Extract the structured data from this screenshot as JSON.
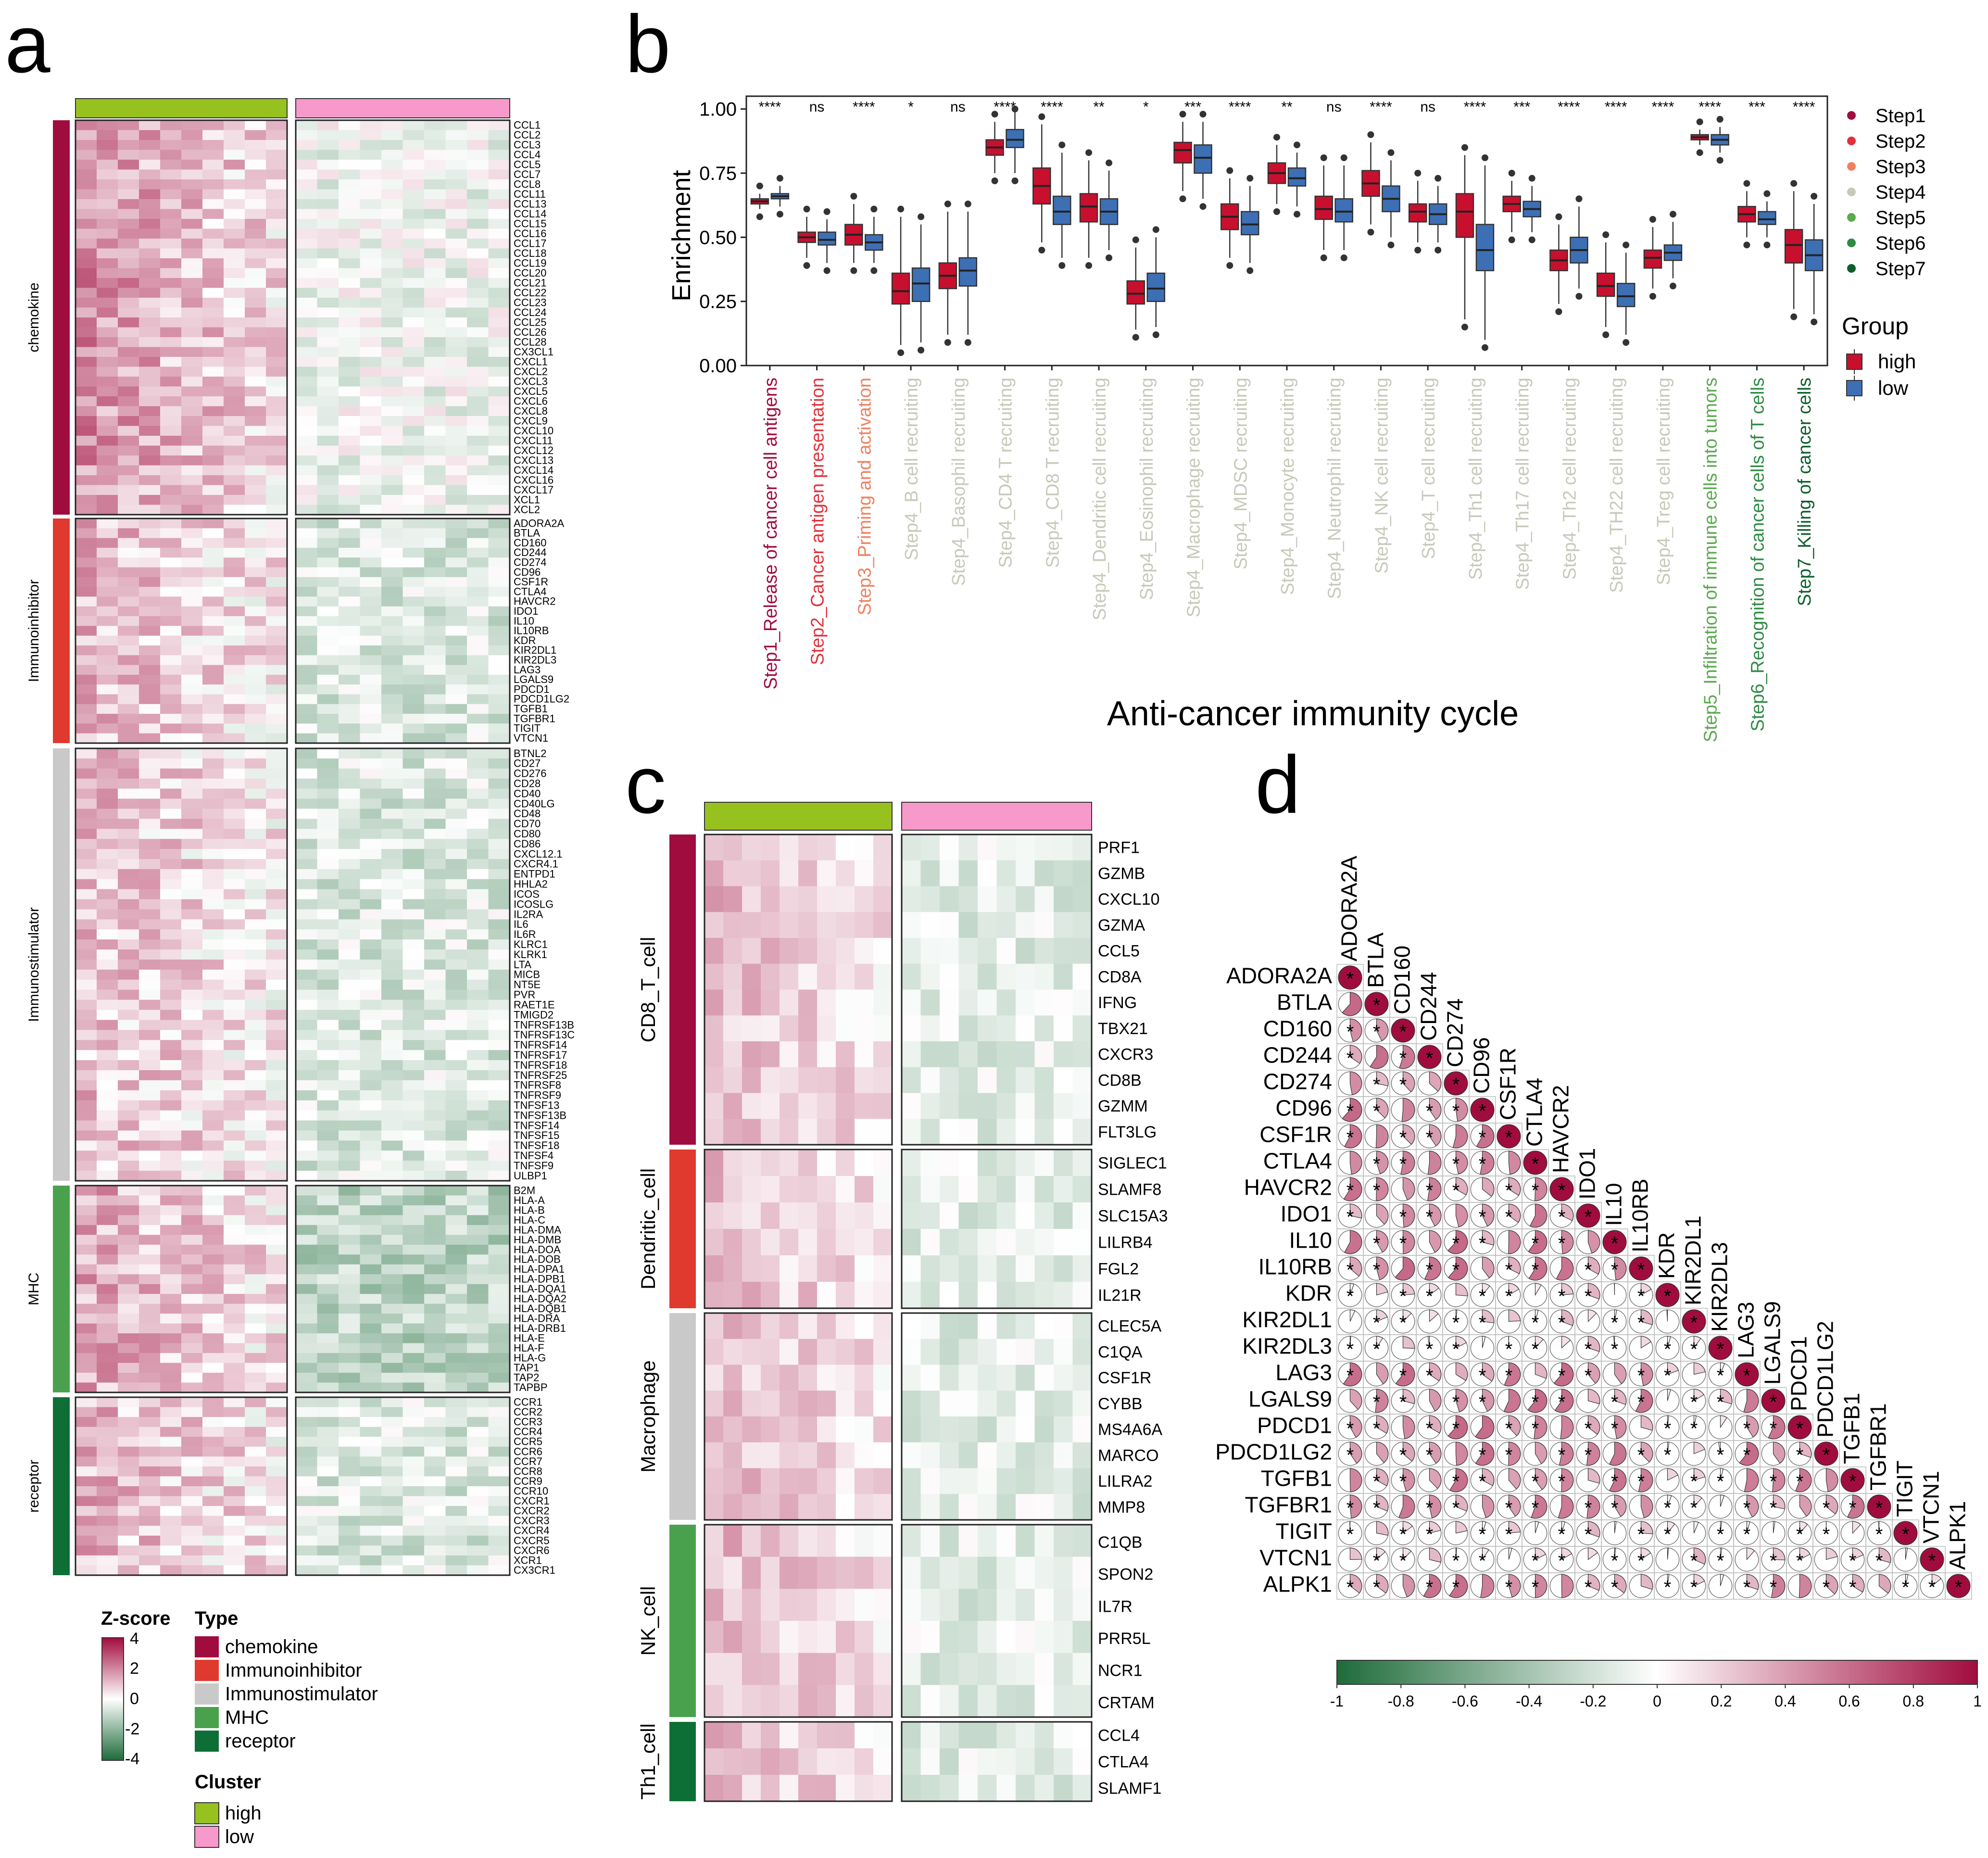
{
  "colors": {
    "green_hi": "#96C11F",
    "pink_lo": "#F79ACB",
    "high": "#C8102E",
    "low": "#3D6FB4",
    "neg": "#1E6B3A",
    "pos": "#A10C3E",
    "step1": "#A10C3E",
    "step2": "#E0323C",
    "step3": "#F0805F",
    "step4": "#C7C9BA",
    "step5": "#5AAA4E",
    "step6": "#2E8B44",
    "step7": "#0E5E2C",
    "type_chemokine": "#A10C3E",
    "type_immunoinhibitor": "#E0392E",
    "type_immunostimulator": "#C9C9C9",
    "type_mhc": "#4AA14D",
    "type_receptor": "#0E6F36"
  },
  "panels": [
    "a",
    "b",
    "c",
    "d"
  ],
  "panel_a": {
    "groups": [
      {
        "type": "chemokine",
        "label": "chemokine",
        "genes": [
          "CCL1",
          "CCL2",
          "CCL3",
          "CCL4",
          "CCL5",
          "CCL7",
          "CCL8",
          "CCL11",
          "CCL13",
          "CCL14",
          "CCL15",
          "CCL16",
          "CCL17",
          "CCL18",
          "CCL19",
          "CCL20",
          "CCL21",
          "CCL22",
          "CCL23",
          "CCL24",
          "CCL25",
          "CCL26",
          "CCL28",
          "CX3CL1",
          "CXCL1",
          "CXCL2",
          "CXCL3",
          "CXCL5",
          "CXCL6",
          "CXCL8",
          "CXCL9",
          "CXCL10",
          "CXCL11",
          "CXCL12",
          "CXCL13",
          "CXCL14",
          "CXCL16",
          "CXCL17",
          "XCL1",
          "XCL2"
        ]
      },
      {
        "type": "immunoinhibitor",
        "label": "Immunoinhibitor",
        "genes": [
          "ADORA2A",
          "BTLA",
          "CD160",
          "CD244",
          "CD274",
          "CD96",
          "CSF1R",
          "CTLA4",
          "HAVCR2",
          "IDO1",
          "IL10",
          "IL10RB",
          "KDR",
          "KIR2DL1",
          "KIR2DL3",
          "LAG3",
          "LGALS9",
          "PDCD1",
          "PDCD1LG2",
          "TGFB1",
          "TGFBR1",
          "TIGIT",
          "VTCN1"
        ]
      },
      {
        "type": "immunostimulator",
        "label": "Immunostimulator",
        "genes": [
          "BTNL2",
          "CD27",
          "CD276",
          "CD28",
          "CD40",
          "CD40LG",
          "CD48",
          "CD70",
          "CD80",
          "CD86",
          "CXCL12.1",
          "CXCR4.1",
          "ENTPD1",
          "HHLA2",
          "ICOS",
          "ICOSLG",
          "IL2RA",
          "IL6",
          "IL6R",
          "KLRC1",
          "KLRK1",
          "LTA",
          "MICB",
          "NT5E",
          "PVR",
          "RAET1E",
          "TMIGD2",
          "TNFRSF13B",
          "TNFRSF13C",
          "TNFRSF14",
          "TNFRSF17",
          "TNFRSF18",
          "TNFRSF25",
          "TNFRSF8",
          "TNFRSF9",
          "TNFSF13",
          "TNFSF13B",
          "TNFSF14",
          "TNFSF15",
          "TNFSF18",
          "TNFSF4",
          "TNFSF9",
          "ULBP1"
        ]
      },
      {
        "type": "mhc",
        "label": "MHC",
        "genes": [
          "B2M",
          "HLA-A",
          "HLA-B",
          "HLA-C",
          "HLA-DMA",
          "HLA-DMB",
          "HLA-DOA",
          "HLA-DOB",
          "HLA-DPA1",
          "HLA-DPB1",
          "HLA-DQA1",
          "HLA-DQA2",
          "HLA-DQB1",
          "HLA-DRA",
          "HLA-DRB1",
          "HLA-E",
          "HLA-F",
          "HLA-G",
          "TAP1",
          "TAP2",
          "TAPBP"
        ]
      },
      {
        "type": "receptor",
        "label": "receptor",
        "genes": [
          "CCR1",
          "CCR2",
          "CCR3",
          "CCR4",
          "CCR5",
          "CCR6",
          "CCR7",
          "CCR8",
          "CCR9",
          "CCR10",
          "CXCR1",
          "CXCR2",
          "CXCR3",
          "CXCR4",
          "CXCR5",
          "CXCR6",
          "XCR1",
          "CX3CR1"
        ]
      }
    ],
    "legend": {
      "zscore_title": "Z-score",
      "zscore_ticks": [
        "4",
        "2",
        "0",
        "-2",
        "-4"
      ],
      "type_title": "Type",
      "types": [
        "chemokine",
        "Immunoinhibitor",
        "Immunostimulator",
        "MHC",
        "receptor"
      ],
      "cluster_title": "Cluster",
      "clusters": [
        "high",
        "low"
      ]
    }
  },
  "chart_data": {
    "type": "box",
    "ylabel": "Enrichment",
    "xlabel": "Anti-cancer immunity cycle",
    "ylim": [
      0,
      1.05
    ],
    "yticks": [
      "0.00",
      "0.25",
      "0.50",
      "0.75",
      "1.00"
    ],
    "categories": [
      {
        "label": "Step1_Release of cancer cell antigens",
        "step": "step1",
        "sig": "****",
        "high": {
          "q1": 0.63,
          "med": 0.64,
          "q3": 0.65,
          "lo": 0.61,
          "hi": 0.67
        },
        "low": {
          "q1": 0.65,
          "med": 0.66,
          "q3": 0.67,
          "lo": 0.62,
          "hi": 0.7
        }
      },
      {
        "label": "Step2_Cancer antigen presentation",
        "step": "step2",
        "sig": "ns",
        "high": {
          "q1": 0.48,
          "med": 0.5,
          "q3": 0.52,
          "lo": 0.42,
          "hi": 0.58
        },
        "low": {
          "q1": 0.47,
          "med": 0.49,
          "q3": 0.52,
          "lo": 0.4,
          "hi": 0.57
        }
      },
      {
        "label": "Step3_Priming and activation",
        "step": "step3",
        "sig": "****",
        "high": {
          "q1": 0.47,
          "med": 0.51,
          "q3": 0.55,
          "lo": 0.4,
          "hi": 0.63
        },
        "low": {
          "q1": 0.45,
          "med": 0.48,
          "q3": 0.51,
          "lo": 0.4,
          "hi": 0.58
        }
      },
      {
        "label": "Step4_B cell recruiting",
        "step": "step4",
        "sig": "*",
        "high": {
          "q1": 0.24,
          "med": 0.29,
          "q3": 0.36,
          "lo": 0.08,
          "hi": 0.58
        },
        "low": {
          "q1": 0.25,
          "med": 0.32,
          "q3": 0.38,
          "lo": 0.09,
          "hi": 0.55
        }
      },
      {
        "label": "Step4_Basophil recruiting",
        "step": "step4",
        "sig": "ns",
        "high": {
          "q1": 0.3,
          "med": 0.35,
          "q3": 0.4,
          "lo": 0.12,
          "hi": 0.6
        },
        "low": {
          "q1": 0.31,
          "med": 0.37,
          "q3": 0.42,
          "lo": 0.12,
          "hi": 0.6
        }
      },
      {
        "label": "Step4_CD4 T recruiting",
        "step": "step4",
        "sig": "****",
        "high": {
          "q1": 0.82,
          "med": 0.85,
          "q3": 0.88,
          "lo": 0.75,
          "hi": 0.95
        },
        "low": {
          "q1": 0.85,
          "med": 0.88,
          "q3": 0.92,
          "lo": 0.75,
          "hi": 1.0
        }
      },
      {
        "label": "Step4_CD8 T recruiting",
        "step": "step4",
        "sig": "****",
        "high": {
          "q1": 0.63,
          "med": 0.7,
          "q3": 0.77,
          "lo": 0.48,
          "hi": 0.94
        },
        "low": {
          "q1": 0.55,
          "med": 0.6,
          "q3": 0.66,
          "lo": 0.42,
          "hi": 0.83
        }
      },
      {
        "label": "Step4_Dendritic cell recruiting",
        "step": "step4",
        "sig": "**",
        "high": {
          "q1": 0.56,
          "med": 0.62,
          "q3": 0.67,
          "lo": 0.42,
          "hi": 0.8
        },
        "low": {
          "q1": 0.55,
          "med": 0.6,
          "q3": 0.65,
          "lo": 0.45,
          "hi": 0.76
        }
      },
      {
        "label": "Step4_Eosinophil recruiting",
        "step": "step4",
        "sig": "*",
        "high": {
          "q1": 0.24,
          "med": 0.28,
          "q3": 0.33,
          "lo": 0.14,
          "hi": 0.46
        },
        "low": {
          "q1": 0.25,
          "med": 0.3,
          "q3": 0.36,
          "lo": 0.15,
          "hi": 0.5
        }
      },
      {
        "label": "Step4_Macrophage recruiting",
        "step": "step4",
        "sig": "***",
        "high": {
          "q1": 0.79,
          "med": 0.84,
          "q3": 0.87,
          "lo": 0.68,
          "hi": 0.95
        },
        "low": {
          "q1": 0.75,
          "med": 0.81,
          "q3": 0.86,
          "lo": 0.65,
          "hi": 0.95
        }
      },
      {
        "label": "Step4_MDSC recruiting",
        "step": "step4",
        "sig": "****",
        "high": {
          "q1": 0.53,
          "med": 0.58,
          "q3": 0.63,
          "lo": 0.42,
          "hi": 0.73
        },
        "low": {
          "q1": 0.51,
          "med": 0.55,
          "q3": 0.6,
          "lo": 0.4,
          "hi": 0.7
        }
      },
      {
        "label": "Step4_Monocyte recruiting",
        "step": "step4",
        "sig": "**",
        "high": {
          "q1": 0.71,
          "med": 0.75,
          "q3": 0.79,
          "lo": 0.63,
          "hi": 0.86
        },
        "low": {
          "q1": 0.7,
          "med": 0.73,
          "q3": 0.77,
          "lo": 0.62,
          "hi": 0.83
        }
      },
      {
        "label": "Step4_Neutrophil recruiting",
        "step": "step4",
        "sig": "ns",
        "high": {
          "q1": 0.57,
          "med": 0.61,
          "q3": 0.66,
          "lo": 0.45,
          "hi": 0.78
        },
        "low": {
          "q1": 0.56,
          "med": 0.6,
          "q3": 0.65,
          "lo": 0.45,
          "hi": 0.78
        }
      },
      {
        "label": "Step4_NK cell recruiting",
        "step": "step4",
        "sig": "****",
        "high": {
          "q1": 0.66,
          "med": 0.71,
          "q3": 0.76,
          "lo": 0.55,
          "hi": 0.87
        },
        "low": {
          "q1": 0.6,
          "med": 0.65,
          "q3": 0.7,
          "lo": 0.5,
          "hi": 0.8
        }
      },
      {
        "label": "Step4_T cell recruiting",
        "step": "step4",
        "sig": "ns",
        "high": {
          "q1": 0.56,
          "med": 0.6,
          "q3": 0.63,
          "lo": 0.48,
          "hi": 0.72
        },
        "low": {
          "q1": 0.55,
          "med": 0.59,
          "q3": 0.63,
          "lo": 0.48,
          "hi": 0.7
        }
      },
      {
        "label": "Step4_Th1 cell recruiting",
        "step": "step4",
        "sig": "****",
        "high": {
          "q1": 0.5,
          "med": 0.6,
          "q3": 0.67,
          "lo": 0.18,
          "hi": 0.82
        },
        "low": {
          "q1": 0.37,
          "med": 0.45,
          "q3": 0.55,
          "lo": 0.1,
          "hi": 0.78
        }
      },
      {
        "label": "Step4_Th17 cell recruiting",
        "step": "step4",
        "sig": "***",
        "high": {
          "q1": 0.6,
          "med": 0.63,
          "q3": 0.66,
          "lo": 0.52,
          "hi": 0.72
        },
        "low": {
          "q1": 0.58,
          "med": 0.61,
          "q3": 0.64,
          "lo": 0.52,
          "hi": 0.7
        }
      },
      {
        "label": "Step4_Th2 cell recruiting",
        "step": "step4",
        "sig": "****",
        "high": {
          "q1": 0.37,
          "med": 0.41,
          "q3": 0.45,
          "lo": 0.24,
          "hi": 0.55
        },
        "low": {
          "q1": 0.4,
          "med": 0.45,
          "q3": 0.5,
          "lo": 0.3,
          "hi": 0.62
        }
      },
      {
        "label": "Step4_TH22 cell recruiting",
        "step": "step4",
        "sig": "****",
        "high": {
          "q1": 0.27,
          "med": 0.31,
          "q3": 0.36,
          "lo": 0.15,
          "hi": 0.48
        },
        "low": {
          "q1": 0.23,
          "med": 0.27,
          "q3": 0.32,
          "lo": 0.12,
          "hi": 0.44
        }
      },
      {
        "label": "Step4_Treg cell recruiting",
        "step": "step4",
        "sig": "****",
        "high": {
          "q1": 0.38,
          "med": 0.42,
          "q3": 0.45,
          "lo": 0.3,
          "hi": 0.54
        },
        "low": {
          "q1": 0.41,
          "med": 0.44,
          "q3": 0.47,
          "lo": 0.34,
          "hi": 0.56
        }
      },
      {
        "label": "Step5_Infiltration of immune cells into tumors",
        "step": "step5",
        "sig": "****",
        "high": {
          "q1": 0.88,
          "med": 0.89,
          "q3": 0.9,
          "lo": 0.86,
          "hi": 0.92
        },
        "low": {
          "q1": 0.86,
          "med": 0.88,
          "q3": 0.9,
          "lo": 0.83,
          "hi": 0.93
        }
      },
      {
        "label": "Step6_Recognition of cancer cells of T cells",
        "step": "step6",
        "sig": "***",
        "high": {
          "q1": 0.56,
          "med": 0.59,
          "q3": 0.62,
          "lo": 0.5,
          "hi": 0.68
        },
        "low": {
          "q1": 0.55,
          "med": 0.57,
          "q3": 0.6,
          "lo": 0.5,
          "hi": 0.64
        }
      },
      {
        "label": "Step7_Killing of cancer cells",
        "step": "step7",
        "sig": "****",
        "high": {
          "q1": 0.4,
          "med": 0.47,
          "q3": 0.53,
          "lo": 0.22,
          "hi": 0.68
        },
        "low": {
          "q1": 0.37,
          "med": 0.43,
          "q3": 0.49,
          "lo": 0.2,
          "hi": 0.63
        }
      }
    ],
    "legend_steps": [
      "Step1",
      "Step2",
      "Step3",
      "Step4",
      "Step5",
      "Step6",
      "Step7"
    ],
    "legend_group_title": "Group",
    "legend_groups": [
      "high",
      "low"
    ]
  },
  "panel_c": {
    "groups": [
      {
        "label": "CD8_T_cell",
        "genes": [
          "PRF1",
          "GZMB",
          "CXCL10",
          "GZMA",
          "CCL5",
          "CD8A",
          "IFNG",
          "TBX21",
          "CXCR3",
          "CD8B",
          "GZMM",
          "FLT3LG"
        ]
      },
      {
        "label": "Dendritic_cell",
        "genes": [
          "SIGLEC1",
          "SLAMF8",
          "SLC15A3",
          "LILRB4",
          "FGL2",
          "IL21R"
        ]
      },
      {
        "label": "Macrophage",
        "genes": [
          "CLEC5A",
          "C1QA",
          "CSF1R",
          "CYBB",
          "MS4A6A",
          "MARCO",
          "LILRA2",
          "MMP8"
        ]
      },
      {
        "label": "NK_cell",
        "genes": [
          "C1QB",
          "SPON2",
          "IL7R",
          "PRR5L",
          "NCR1",
          "CRTAM"
        ]
      },
      {
        "label": "Th1_cell",
        "genes": [
          "CCL4",
          "CTLA4",
          "SLAMF1"
        ]
      }
    ]
  },
  "panel_d": {
    "genes": [
      "ADORA2A",
      "BTLA",
      "CD160",
      "CD244",
      "CD274",
      "CD96",
      "CSF1R",
      "CTLA4",
      "HAVCR2",
      "IDO1",
      "IL10",
      "IL10RB",
      "KDR",
      "KIR2DL1",
      "KIR2DL3",
      "LAG3",
      "LGALS9",
      "PDCD1",
      "PDCD1LG2",
      "TGFB1",
      "TGFBR1",
      "TIGIT",
      "VTCN1",
      "ALPK1"
    ],
    "colorbar_ticks": [
      "-1",
      "-0.8",
      "-0.6",
      "-0.4",
      "-0.2",
      "0",
      "0.2",
      "0.4",
      "0.6",
      "0.8",
      "1"
    ],
    "sig_marker": "*"
  }
}
